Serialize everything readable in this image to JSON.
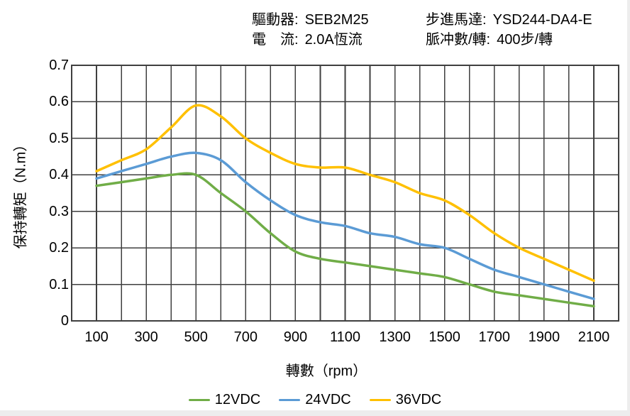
{
  "header": {
    "left": [
      {
        "label": "驅動器:",
        "value": "SEB2M25"
      },
      {
        "label": "電　流:",
        "value": "2.0A恆流"
      }
    ],
    "right": [
      {
        "label": "步進馬達:",
        "value": "YSD244-DA4-E"
      },
      {
        "label": "脈冲數/轉:",
        "value": "400步/轉"
      }
    ]
  },
  "chart_data": {
    "type": "line",
    "title": "",
    "xlabel": "轉數（rpm）",
    "ylabel": "保持轉矩（N.m）",
    "x": [
      100,
      200,
      300,
      400,
      500,
      600,
      700,
      800,
      900,
      1000,
      1100,
      1200,
      1300,
      1400,
      1500,
      1600,
      1700,
      1800,
      1900,
      2000,
      2100
    ],
    "series": [
      {
        "name": "12VDC",
        "color": "#70AD47",
        "values": [
          0.37,
          0.38,
          0.39,
          0.4,
          0.4,
          0.35,
          0.3,
          0.24,
          0.19,
          0.17,
          0.16,
          0.15,
          0.14,
          0.13,
          0.12,
          0.1,
          0.08,
          0.07,
          0.06,
          0.05,
          0.04
        ]
      },
      {
        "name": "24VDC",
        "color": "#5B9BD5",
        "values": [
          0.39,
          0.41,
          0.43,
          0.45,
          0.46,
          0.44,
          0.38,
          0.33,
          0.29,
          0.27,
          0.26,
          0.24,
          0.23,
          0.21,
          0.2,
          0.17,
          0.14,
          0.12,
          0.1,
          0.08,
          0.06
        ]
      },
      {
        "name": "36VDC",
        "color": "#FFC000",
        "values": [
          0.41,
          0.44,
          0.47,
          0.53,
          0.59,
          0.56,
          0.5,
          0.46,
          0.43,
          0.42,
          0.42,
          0.4,
          0.38,
          0.35,
          0.33,
          0.29,
          0.24,
          0.2,
          0.17,
          0.14,
          0.11
        ]
      }
    ],
    "xlim": [
      0,
      2200
    ],
    "ylim": [
      0,
      0.7
    ],
    "x_grid_step": 100,
    "y_grid_step": 0.1,
    "xticks": {
      "values": [
        100,
        300,
        500,
        700,
        900,
        1100,
        1300,
        1500,
        1700,
        1900,
        2100
      ],
      "labels": [
        "100",
        "300",
        "500",
        "700",
        "900",
        "1100",
        "1300",
        "1500",
        "1700",
        "1900",
        "2100"
      ]
    },
    "yticks": {
      "values": [
        0.7,
        0.6,
        0.5,
        0.4,
        0.3,
        0.2,
        0.1,
        0
      ],
      "labels": [
        "0.7",
        "0.6",
        "0.5",
        "0.4",
        "0.3",
        "0.2",
        "0.1",
        "0"
      ]
    },
    "grid": "on",
    "legend_position": "bottom",
    "grid_color": "#3F3F3F",
    "text_color": "#000000",
    "background_color": "#FFFFFF"
  }
}
